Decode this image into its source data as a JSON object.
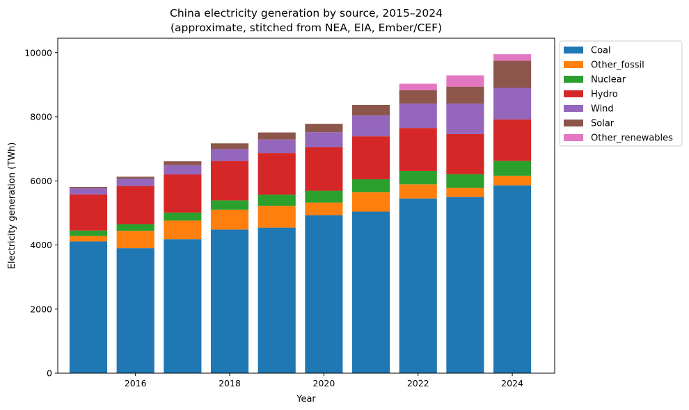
{
  "chart_data": {
    "type": "bar",
    "stacked": true,
    "title": "China electricity generation by source, 2015–2024",
    "subtitle": "(approximate, stitched from NEA, EIA, Ember/CEF)",
    "xlabel": "Year",
    "ylabel": "Electricity generation (TWh)",
    "categories": [
      2015,
      2016,
      2017,
      2018,
      2019,
      2020,
      2021,
      2022,
      2023,
      2024
    ],
    "x_ticks": [
      "2016",
      "2018",
      "2020",
      "2022",
      "2024"
    ],
    "y_ticks": [
      "0",
      "2000",
      "4000",
      "6000",
      "8000",
      "10000"
    ],
    "ylim": [
      0,
      10450
    ],
    "xlim": [
      2014.35,
      2024.9
    ],
    "grid": false,
    "legend_position": "outside-top-right",
    "series": [
      {
        "name": "Coal",
        "color": "#1f77b4",
        "values": [
          4110,
          3900,
          4180,
          4480,
          4540,
          4930,
          5040,
          5450,
          5500,
          5860
        ]
      },
      {
        "name": "Other_fossil",
        "color": "#ff7f0e",
        "values": [
          170,
          540,
          580,
          620,
          680,
          390,
          610,
          440,
          280,
          300
        ]
      },
      {
        "name": "Nuclear",
        "color": "#2ca02c",
        "values": [
          170,
          210,
          250,
          290,
          350,
          370,
          400,
          420,
          430,
          460
        ]
      },
      {
        "name": "Hydro",
        "color": "#d62728",
        "values": [
          1130,
          1190,
          1190,
          1230,
          1300,
          1360,
          1340,
          1340,
          1250,
          1300
        ]
      },
      {
        "name": "Wind",
        "color": "#9467bd",
        "values": [
          190,
          230,
          290,
          370,
          420,
          470,
          650,
          760,
          950,
          980
        ]
      },
      {
        "name": "Solar",
        "color": "#8c564b",
        "values": [
          40,
          60,
          120,
          180,
          220,
          260,
          330,
          420,
          530,
          850
        ]
      },
      {
        "name": "Other_renewables",
        "color": "#e377c2",
        "values": [
          0,
          0,
          0,
          0,
          0,
          0,
          0,
          200,
          350,
          200
        ]
      }
    ]
  }
}
